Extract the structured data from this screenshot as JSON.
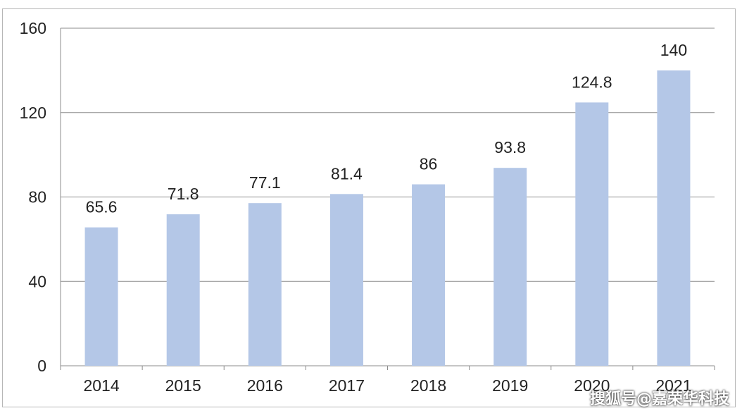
{
  "chart_data": {
    "type": "bar",
    "categories": [
      "2014",
      "2015",
      "2016",
      "2017",
      "2018",
      "2019",
      "2020",
      "2021"
    ],
    "values": [
      65.6,
      71.8,
      77.1,
      81.4,
      86,
      93.8,
      124.8,
      140
    ],
    "value_labels": [
      "65.6",
      "71.8",
      "77.1",
      "81.4",
      "86",
      "93.8",
      "124.8",
      "140"
    ],
    "title": "",
    "xlabel": "",
    "ylabel": "",
    "ylim": [
      0,
      160
    ],
    "yticks": [
      0,
      40,
      80,
      120,
      160
    ],
    "grid": true,
    "legend": "none",
    "bar_color": "#b4c7e7",
    "grid_color": "#8c8c8c"
  },
  "watermark": "搜狐号@嘉荣华科技"
}
